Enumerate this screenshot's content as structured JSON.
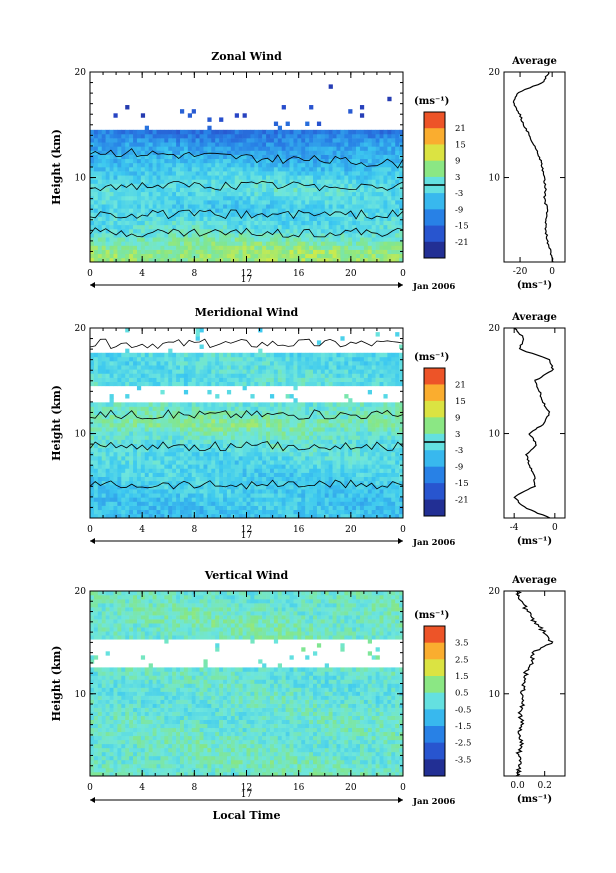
{
  "chart_data": [
    {
      "type": "heatmap",
      "title": "Zonal Wind",
      "ylabel": "Height (km)",
      "xlabel": "",
      "xlim": [
        0,
        24
      ],
      "ylim": [
        2,
        20
      ],
      "x_ticks": [
        "0",
        "4",
        "8",
        "12",
        "16",
        "20",
        "0"
      ],
      "y_ticks": [
        "20",
        "10"
      ],
      "date_tick": "17",
      "date_label": "Jan 2006",
      "colorbar": {
        "unit_label": "(ms⁻¹)",
        "ticks": [
          "21",
          "15",
          "9",
          "3",
          "-3",
          "-9",
          "-15",
          "-21"
        ],
        "range": [
          -24,
          24
        ],
        "contour_value": 0
      },
      "profile": {
        "title": "Average",
        "xlabel": "(ms⁻¹)",
        "x_ticks": [
          "-20",
          "0"
        ],
        "xlim": [
          -30,
          8
        ],
        "y_ticks": [
          "20",
          "10"
        ],
        "height": [
          2,
          3,
          4,
          5,
          6,
          7,
          8,
          9,
          10,
          11,
          12,
          13,
          14,
          15,
          16,
          17,
          18,
          19,
          20
        ],
        "values": [
          1,
          -1,
          -3,
          -4,
          -4,
          -3,
          -5,
          -4,
          -5,
          -6,
          -8,
          -11,
          -14,
          -18,
          -20,
          -24,
          -22,
          -6,
          -2
        ]
      },
      "field": {
        "heights": [
          3,
          5,
          7,
          9,
          11,
          13,
          16
        ],
        "values": [
          6,
          0,
          -3,
          0,
          -4,
          -8,
          -17
        ]
      }
    },
    {
      "type": "heatmap",
      "title": "Meridional Wind",
      "ylabel": "Height (km)",
      "xlabel": "",
      "xlim": [
        0,
        24
      ],
      "ylim": [
        2,
        20
      ],
      "x_ticks": [
        "0",
        "4",
        "8",
        "12",
        "16",
        "20",
        "0"
      ],
      "y_ticks": [
        "20",
        "10"
      ],
      "date_tick": "17",
      "date_label": "Jan 2006",
      "colorbar": {
        "unit_label": "(ms⁻¹)",
        "ticks": [
          "21",
          "15",
          "9",
          "3",
          "-3",
          "-9",
          "-15",
          "-21"
        ],
        "range": [
          -24,
          24
        ],
        "contour_value": 0
      },
      "profile": {
        "title": "Average",
        "xlabel": "(ms⁻¹)",
        "x_ticks": [
          "-4",
          "0"
        ],
        "xlim": [
          -5,
          1
        ],
        "y_ticks": [
          "20",
          "10"
        ],
        "height": [
          2,
          3,
          4,
          5,
          6,
          7,
          8,
          9,
          10,
          11,
          12,
          13,
          14,
          15,
          16,
          17,
          18,
          19,
          20
        ],
        "values": [
          -0.5,
          -3,
          -4,
          -2,
          -2,
          -2.5,
          -2.8,
          -1.8,
          -2.5,
          -1,
          -0.5,
          -1.2,
          -1.5,
          -2,
          -0.2,
          -0.5,
          -3.5,
          -3,
          -4
        ]
      },
      "field": {
        "heights": [
          3,
          5,
          7,
          9,
          11,
          13,
          17
        ],
        "values": [
          -4,
          -3,
          -2,
          0,
          4,
          0,
          -1
        ]
      }
    },
    {
      "type": "heatmap",
      "title": "Vertical Wind",
      "ylabel": "Height (km)",
      "xlabel": "Local Time",
      "xlim": [
        0,
        24
      ],
      "ylim": [
        2,
        20
      ],
      "x_ticks": [
        "0",
        "4",
        "8",
        "12",
        "16",
        "20",
        "0"
      ],
      "y_ticks": [
        "20",
        "10"
      ],
      "date_tick": "17",
      "date_label": "Jan 2006",
      "colorbar": {
        "unit_label": "(ms⁻¹)",
        "ticks": [
          "3.5",
          "2.5",
          "1.5",
          "0.5",
          "-0.5",
          "-1.5",
          "-2.5",
          "-3.5"
        ],
        "range": [
          -4,
          4
        ]
      },
      "profile": {
        "title": "Average",
        "xlabel": "(ms⁻¹)",
        "x_ticks": [
          "0.0",
          "0.2"
        ],
        "xlim": [
          -0.1,
          0.35
        ],
        "y_ticks": [
          "20",
          "10"
        ],
        "height": [
          2,
          3,
          4,
          5,
          6,
          7,
          8,
          9,
          10,
          11,
          12,
          13,
          14,
          15,
          16,
          17,
          18,
          19,
          20
        ],
        "values": [
          0,
          0.02,
          0,
          0.03,
          0.01,
          0.03,
          0.02,
          0.04,
          0.03,
          0.05,
          0.06,
          0.1,
          0.12,
          0.25,
          0.2,
          0.12,
          0.08,
          0.02,
          0
        ]
      },
      "field": {
        "heights": [
          3,
          6,
          9,
          12,
          17,
          19
        ],
        "values": [
          0.3,
          0.2,
          0.1,
          0.1,
          0.4,
          0.2
        ]
      }
    }
  ]
}
